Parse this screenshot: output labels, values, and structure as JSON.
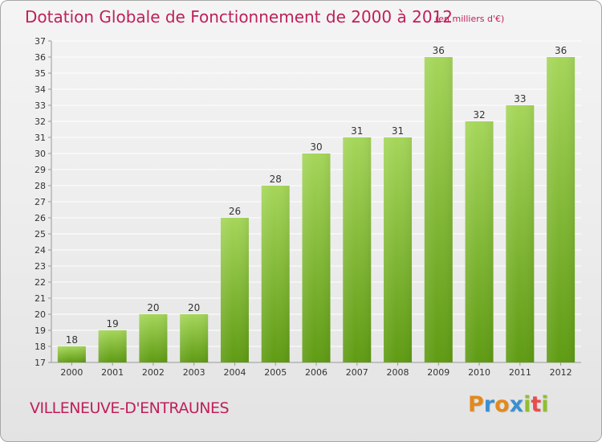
{
  "title": "Dotation Globale de Fonctionnement de 2000 à 2012",
  "unit_note": "(en milliers d'€)",
  "commune": "VILLENEUVE-D'ENTRAUNES",
  "logo": {
    "letters": [
      "P",
      "r",
      "o",
      "x",
      "i",
      "t",
      "i"
    ],
    "colors": [
      "#e2891c",
      "#3b8fd0",
      "#e2891c",
      "#3b8fd0",
      "#8fbf2f",
      "#e84d4d",
      "#8fbf2f"
    ]
  },
  "colors": {
    "bar_top": "#a5d65a",
    "bar_bottom": "#5f9b13",
    "text": "#bf1f5a",
    "grid": "#ffffff"
  },
  "chart_data": {
    "type": "bar",
    "title": "Dotation Globale de Fonctionnement de 2000 à 2012",
    "subtitle": "(en milliers d'€)",
    "xlabel": "",
    "ylabel": "",
    "categories": [
      "2000",
      "2001",
      "2002",
      "2003",
      "2004",
      "2005",
      "2006",
      "2007",
      "2008",
      "2009",
      "2010",
      "2011",
      "2012"
    ],
    "values": [
      18,
      19,
      20,
      20,
      26,
      28,
      30,
      31,
      31,
      36,
      32,
      33,
      36
    ],
    "data_labels": [
      "18",
      "19",
      "20",
      "20",
      "26",
      "28",
      "30",
      "31",
      "31",
      "36",
      "32",
      "33",
      "36"
    ],
    "ylim": [
      17,
      37
    ],
    "yticks": [
      17,
      18,
      19,
      20,
      21,
      22,
      23,
      24,
      25,
      26,
      27,
      28,
      29,
      30,
      31,
      32,
      33,
      34,
      35,
      36,
      37
    ],
    "ytick_labels": [
      "17",
      "18",
      "19",
      "20",
      "21",
      "22",
      "23",
      "24",
      "25",
      "26",
      "27",
      "28",
      "29",
      "30",
      "31",
      "32",
      "33",
      "34",
      "35",
      "36",
      "37"
    ],
    "grid": true,
    "legend": "none"
  }
}
